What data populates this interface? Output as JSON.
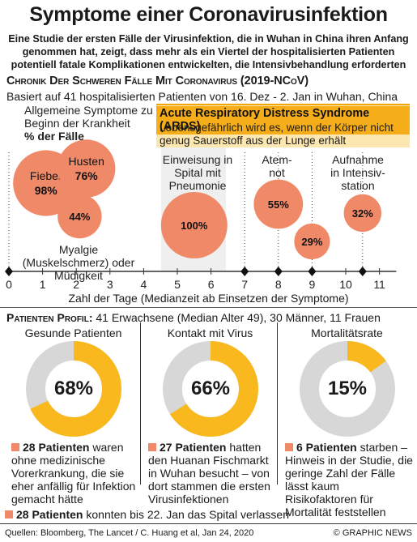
{
  "header": {
    "title": "Symptome einer Coronavirusinfektion",
    "intro": "Eine Studie der ersten Fälle der Virusinfektion, die in Wuhan in China ihren Anfang genommen hat, zeigt, dass mehr als ein Viertel der hospitalisierten Patienten potentiell fatale Komplikationen entwickelten, die Intensivbehandlung erforderten"
  },
  "timeline_section": {
    "title": "Chronik der schweren Fälle mit Coronavirus (2019-nCoV)",
    "subtitle": "Basiert auf 41 hospitalisierten Patienten von 16. Dez - 2. Jan in Wuhan, China",
    "general_symptoms_label": "Allgemeine Symptome zu Beginn der Krankheit",
    "percent_label": "% der Fälle",
    "myalgia_label": "Myalgie (Muskelschmerz) oder Müdigkeit",
    "hospital_label": "Einweisung in Spital mit Pneumonie",
    "dyspnea_label": "Atem- not",
    "icu_label": "Aufnahme in Intensiv- station",
    "axis_title": "Zahl der Tage (Medianzeit ab Einsetzen der Symptome)"
  },
  "ards": {
    "title": "Acute Respiratory Distress Syndrome (ARDS)",
    "text": "Lebensgefährlich wird es, wenn der Körper nicht genug Sauerstoff aus der Lunge erhält"
  },
  "colors": {
    "bubble": "#f08968",
    "accent": "#f5ad19",
    "ards_bg": "#fce7b1",
    "donut_bg": "#d7d7d7",
    "donut_fill": "#f9b81e"
  },
  "chart_data": [
    {
      "type": "scatter",
      "title": "Chronik der schweren Fälle mit Coronavirus (2019-nCoV)",
      "xlabel": "Zahl der Tage (Medianzeit ab Einsetzen der Symptome)",
      "x_ticks": [
        "0",
        "1",
        "2",
        "3",
        "4",
        "5",
        "6",
        "7",
        "8",
        "9",
        "10",
        "11"
      ],
      "xlim": [
        0,
        11.5
      ],
      "highlighted_days": [
        0,
        7,
        8,
        9,
        10.5
      ],
      "points": [
        {
          "label": "Fieber",
          "value_label": "98%",
          "x": 1.1,
          "value": 98
        },
        {
          "label": "Husten",
          "value_label": "76%",
          "x": 2.3,
          "value": 76
        },
        {
          "label": "Myalgie (Muskelschmerz) oder Müdigkeit",
          "value_label": "44%",
          "x": 2.1,
          "value": 44
        },
        {
          "label": "Einweisung in Spital mit Pneumonie",
          "value_label": "100%",
          "x": 5.5,
          "value": 100
        },
        {
          "label": "Atemnot",
          "value_label": "55%",
          "x": 8,
          "value": 55
        },
        {
          "label": "ARDS",
          "value_label": "29%",
          "x": 9,
          "value": 29
        },
        {
          "label": "Aufnahme in Intensivstation",
          "value_label": "32%",
          "x": 10.5,
          "value": 32
        }
      ]
    },
    {
      "type": "pie",
      "title": "Gesunde Patienten",
      "value": 68,
      "value_label": "68%"
    },
    {
      "type": "pie",
      "title": "Kontakt mit Virus",
      "value": 66,
      "value_label": "66%"
    },
    {
      "type": "pie",
      "title": "Mortalitätsrate",
      "value": 15,
      "value_label": "15%"
    }
  ],
  "profile": {
    "label": "Patienten Profil:",
    "text": "41 Erwachsene (Median Alter 49), 30 Männer, 11 Frauen"
  },
  "donuts": [
    {
      "title": "Gesunde Patienten",
      "pct": "68%",
      "bold": "28 Patienten",
      "text": "waren ohne medizinische Vorerkrankung, die sie eher anfällig für Infektion gemacht hätte"
    },
    {
      "title": "Kontakt mit Virus",
      "pct": "66%",
      "bold": "27 Patienten",
      "text": "hatten den Huanan Fischmarkt in Wuhan besucht – von dort stammen die ersten Virusinfektionen"
    },
    {
      "title": "Mortalitätsrate",
      "pct": "15%",
      "bold": "6 Patienten",
      "text": "starben – Hinweis in der Studie, die geringe Zahl der Fälle lässt kaum Risikofaktoren für Mortalität feststellen"
    }
  ],
  "discharge": {
    "bold": "28 Patienten",
    "text": "konnten bis 22. Jan das Spital verlassen"
  },
  "footer": {
    "sources": "Quellen: Bloomberg, The Lancet / C. Huang et al, Jan 24, 2020",
    "credit": "© GRAPHIC NEWS"
  }
}
